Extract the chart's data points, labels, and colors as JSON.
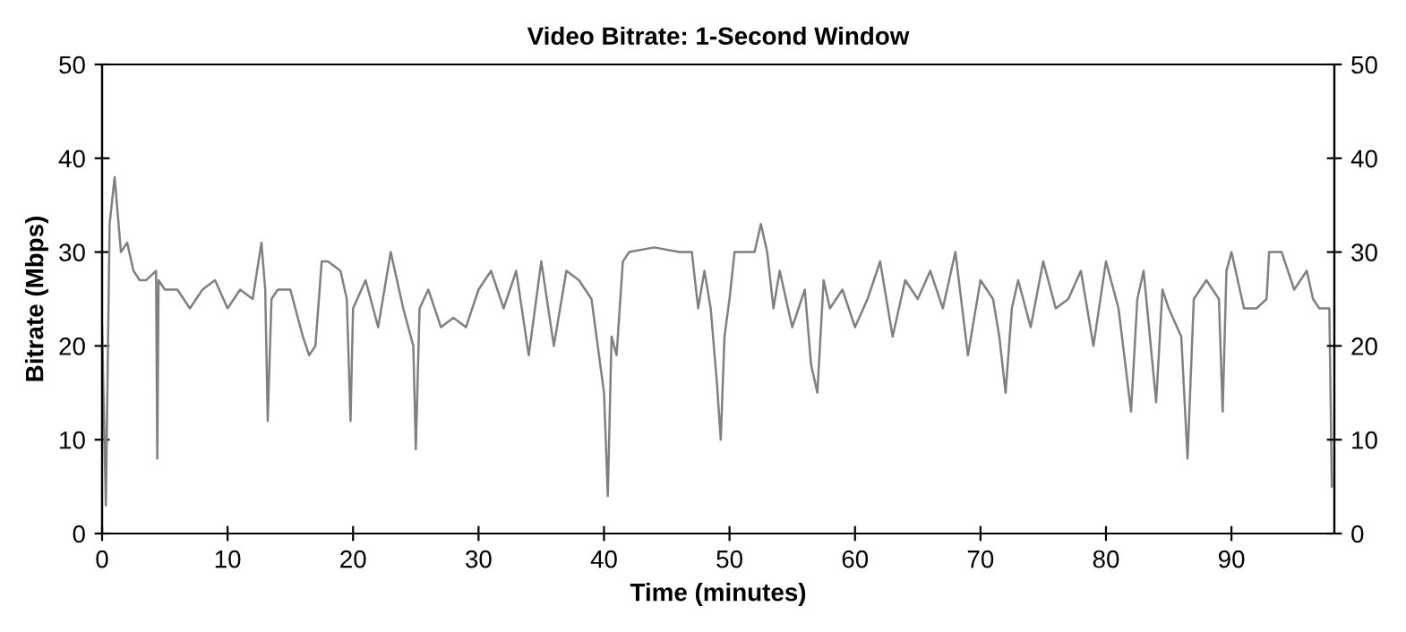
{
  "chart_data": {
    "type": "line",
    "title": "Video Bitrate: 1-Second Window",
    "xlabel": "Time (minutes)",
    "ylabel": "Bitrate (Mbps)",
    "x": [
      0,
      0.3,
      0.6,
      1,
      1.5,
      2,
      2.5,
      3,
      3.5,
      4.3,
      4.4,
      4.5,
      5,
      6,
      7,
      8,
      9,
      10,
      11,
      12,
      12.7,
      13,
      13.2,
      13.5,
      14,
      15,
      16,
      16.5,
      17,
      17.5,
      18,
      19,
      19.5,
      19.8,
      20,
      21,
      22,
      23,
      24,
      24.8,
      25,
      25.3,
      26,
      27,
      28,
      29,
      30,
      31,
      32,
      33,
      34,
      35,
      36,
      37,
      38,
      39,
      40,
      40.3,
      40.6,
      41,
      41.5,
      42,
      44,
      46,
      47,
      47.5,
      48,
      48.5,
      49,
      49.3,
      49.6,
      50,
      50.4,
      52,
      52.5,
      53,
      53.5,
      54,
      55,
      56,
      56.5,
      57,
      57.5,
      58,
      59,
      60,
      61,
      62,
      63,
      64,
      65,
      66,
      67,
      68,
      69,
      70,
      71,
      71.5,
      72,
      72.5,
      73,
      74,
      75,
      76,
      77,
      78,
      79,
      80,
      81,
      82,
      82.5,
      83,
      84,
      84.5,
      85,
      86,
      86.5,
      87,
      88,
      89,
      89.3,
      89.6,
      90,
      91,
      92,
      92.8,
      93,
      94,
      95,
      96,
      96.5,
      97,
      97.8,
      98
    ],
    "series": [
      {
        "color": "#808080",
        "values": [
          22,
          3,
          33,
          38,
          30,
          31,
          28,
          27,
          27,
          28,
          8,
          27,
          26,
          26,
          24,
          26,
          27,
          24,
          26,
          25,
          31,
          26,
          12,
          25,
          26,
          26,
          21,
          19,
          20,
          29,
          29,
          28,
          25,
          12,
          24,
          27,
          22,
          30,
          24,
          20,
          9,
          24,
          26,
          22,
          23,
          22,
          26,
          28,
          24,
          28,
          19,
          29,
          20,
          28,
          27,
          25,
          15,
          4,
          21,
          19,
          29,
          30,
          30.5,
          30,
          30,
          24,
          28,
          24,
          16,
          10,
          21,
          25,
          30,
          30,
          33,
          30,
          24,
          28,
          22,
          26,
          18,
          15,
          27,
          24,
          26,
          22,
          25,
          29,
          21,
          27,
          25,
          28,
          24,
          30,
          19,
          27,
          25,
          21,
          15,
          24,
          27,
          22,
          29,
          24,
          25,
          28,
          20,
          29,
          24,
          13,
          25,
          28,
          14,
          26,
          24,
          21,
          8,
          25,
          27,
          25,
          13,
          28,
          30,
          24,
          24,
          25,
          30,
          30,
          26,
          28,
          25,
          24,
          24,
          5
        ]
      }
    ],
    "xlim": [
      0,
      98.2
    ],
    "xticks": [
      0,
      10,
      20,
      30,
      40,
      50,
      60,
      70,
      80,
      90
    ],
    "ylim": [
      0,
      50
    ],
    "yticks": [
      0,
      10,
      20,
      30,
      40,
      50
    ],
    "y2lim": [
      0,
      50
    ],
    "y2ticks": [
      0,
      10,
      20,
      30,
      40,
      50
    ],
    "grid": false,
    "legend": false
  }
}
